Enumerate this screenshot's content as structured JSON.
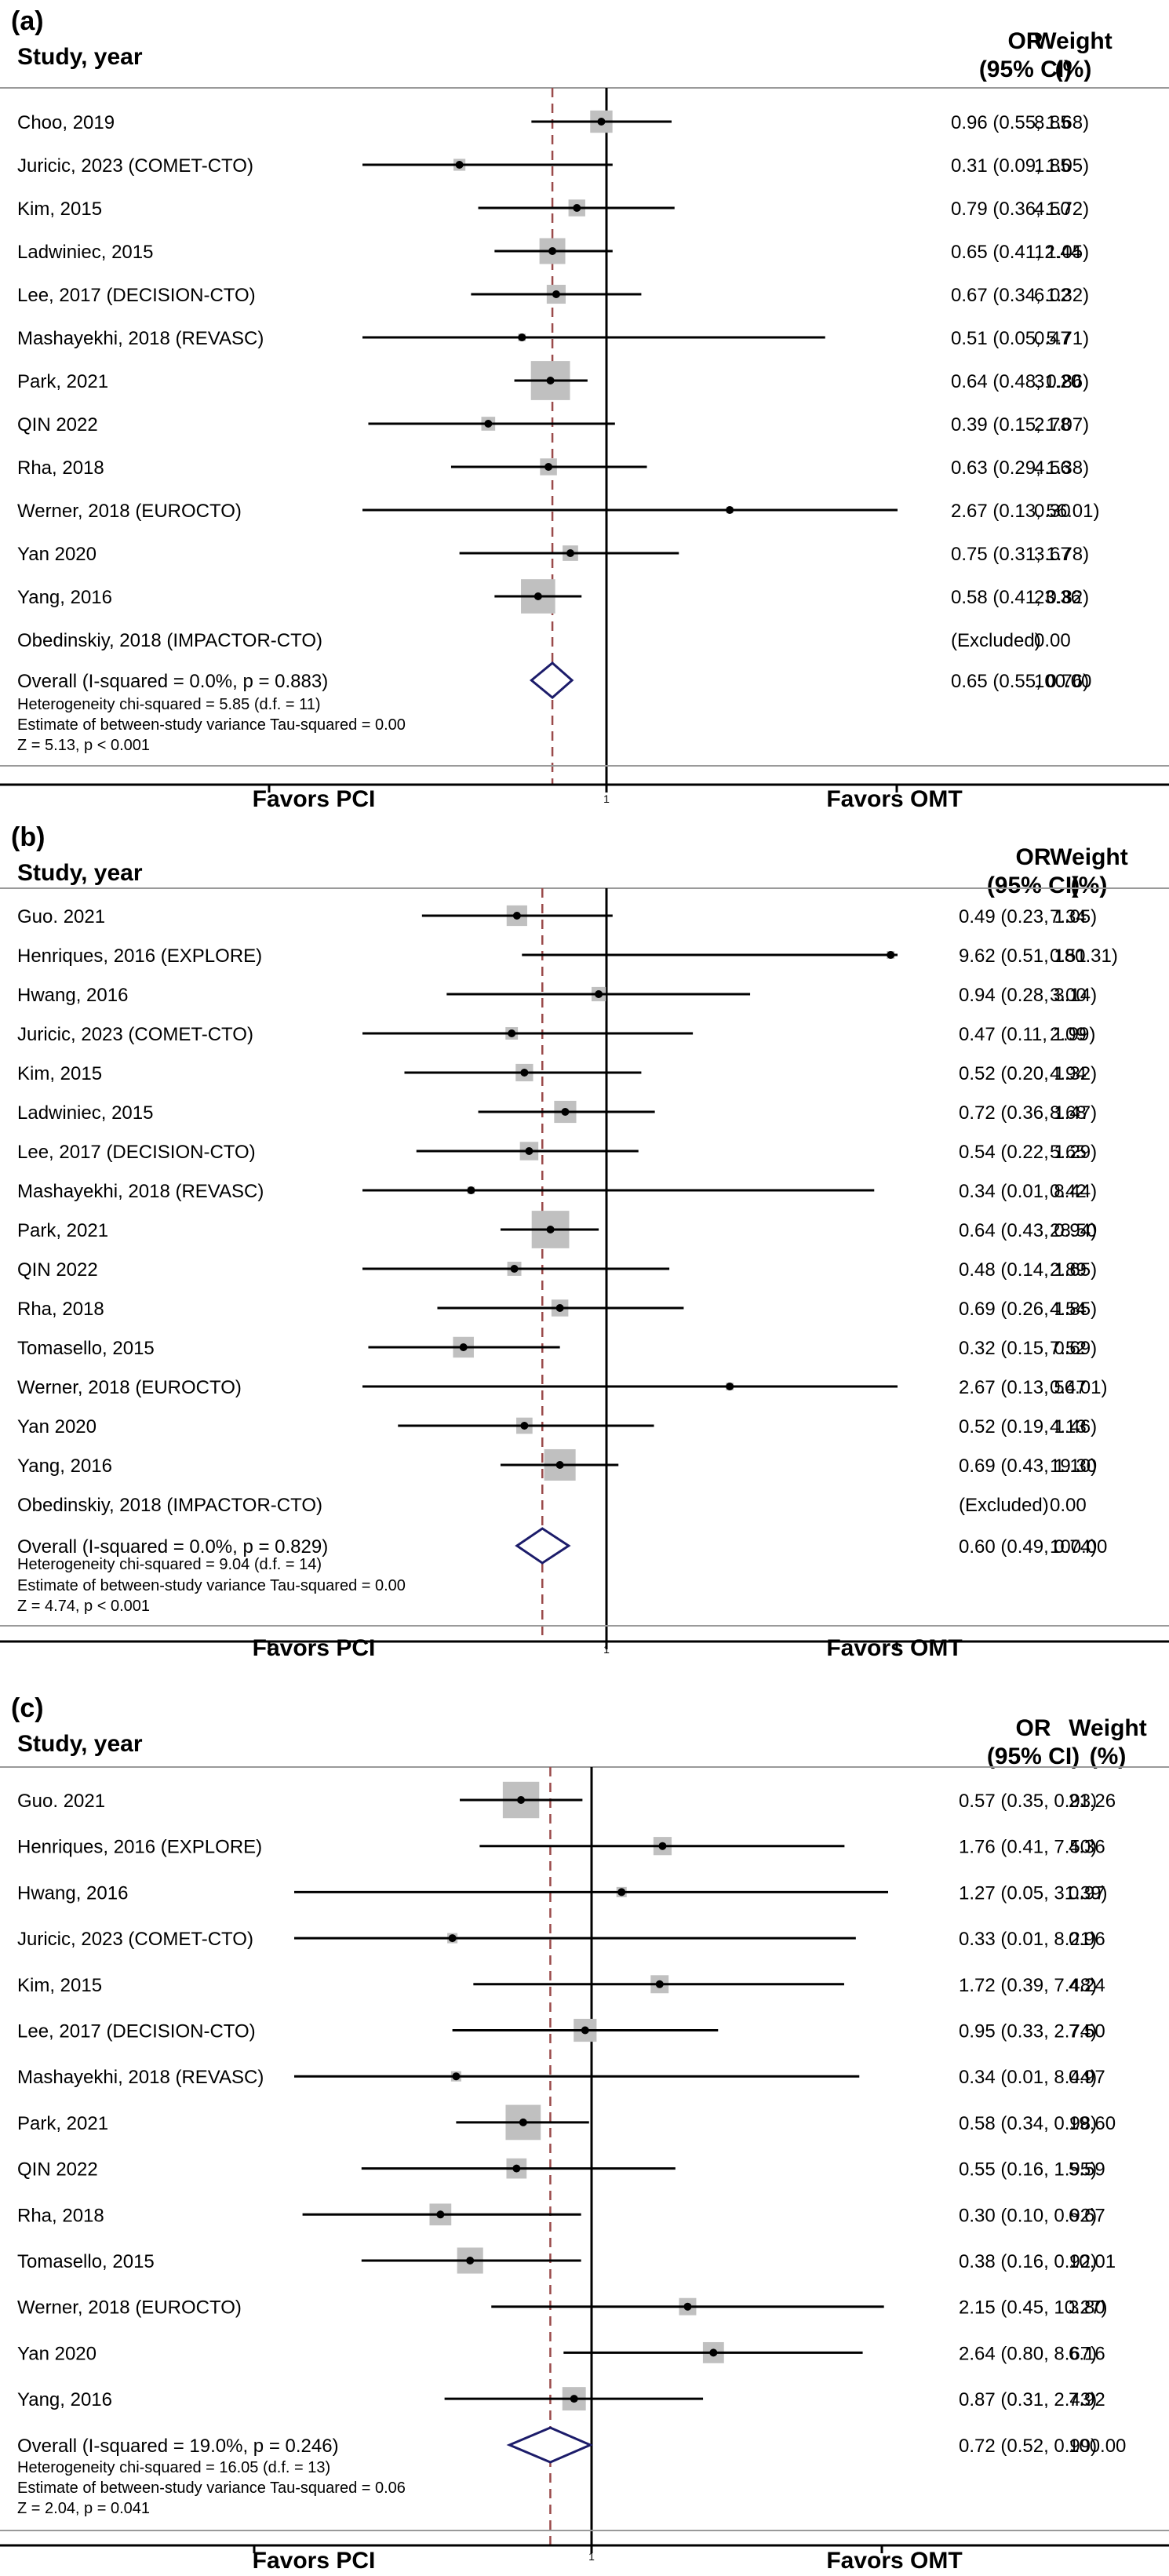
{
  "chart_data": [
    {
      "type": "forest",
      "panel_label": "(a)",
      "header": {
        "study": "Study, year",
        "or_line1": "OR",
        "or_line2": "(95% CI)",
        "weight_line1": "Weight",
        "weight_line2": "(%)"
      },
      "xaxis": {
        "tick_label": "1",
        "left_label": "Favors PCI",
        "right_label": "Favors OMT"
      },
      "studies": [
        {
          "name": "Choo, 2019",
          "or": 0.96,
          "lo": 0.55,
          "hi": 1.68,
          "text": "0.96 (0.55, 1.68)",
          "weight": "8.85",
          "w": 8.85
        },
        {
          "name": "Juricic, 2023 (COMET-CTO)",
          "or": 0.31,
          "lo": 0.09,
          "hi": 1.05,
          "text": "0.31 (0.09, 1.05)",
          "weight": "1.85",
          "w": 1.85
        },
        {
          "name": "Kim, 2015",
          "or": 0.79,
          "lo": 0.36,
          "hi": 1.72,
          "text": "0.79 (0.36, 1.72)",
          "weight": "4.50",
          "w": 4.5
        },
        {
          "name": "Ladwiniec, 2015",
          "or": 0.65,
          "lo": 0.41,
          "hi": 1.05,
          "text": "0.65 (0.41, 1.05)",
          "weight": "12.44",
          "w": 12.44
        },
        {
          "name": "Lee, 2017 (DECISION-CTO)",
          "or": 0.67,
          "lo": 0.34,
          "hi": 1.32,
          "text": "0.67 (0.34, 1.32)",
          "weight": "6.02",
          "w": 6.02
        },
        {
          "name": "Mashayekhi, 2018 (REVASC)",
          "or": 0.51,
          "lo": 0.05,
          "hi": 5.71,
          "text": "0.51 (0.05, 5.71)",
          "weight": "0.47",
          "w": 0.47
        },
        {
          "name": "Park, 2021",
          "or": 0.64,
          "lo": 0.48,
          "hi": 0.86,
          "text": "0.64 (0.48, 0.86)",
          "weight": "31.20",
          "w": 31.2
        },
        {
          "name": "QIN 2022",
          "or": 0.39,
          "lo": 0.15,
          "hi": 1.07,
          "text": "0.39 (0.15, 1.07)",
          "weight": "2.78",
          "w": 2.78
        },
        {
          "name": "Rha, 2018",
          "or": 0.63,
          "lo": 0.29,
          "hi": 1.38,
          "text": "0.63 (0.29, 1.38)",
          "weight": "4.56",
          "w": 4.56
        },
        {
          "name": "Werner, 2018 (EUROCTO)",
          "or": 2.67,
          "lo": 0.13,
          "hi": 56.01,
          "text": "2.67 (0.13, 56.01)",
          "weight": "0.30",
          "w": 0.3
        },
        {
          "name": "Yan 2020",
          "or": 0.75,
          "lo": 0.31,
          "hi": 1.78,
          "text": "0.75 (0.31, 1.78)",
          "weight": "3.67",
          "w": 3.67
        },
        {
          "name": "Yang, 2016",
          "or": 0.58,
          "lo": 0.41,
          "hi": 0.82,
          "text": "0.58 (0.41, 0.82)",
          "weight": "23.36",
          "w": 23.36
        },
        {
          "name": "Obedinskiy, 2018 (IMPACTOR-CTO)",
          "or": null,
          "lo": null,
          "hi": null,
          "text": "(Excluded)",
          "weight": "0.00",
          "w": 0
        }
      ],
      "overall": {
        "label": "Overall  (I-squared = 0.0%, p = 0.883)",
        "or": 0.65,
        "lo": 0.55,
        "hi": 0.76,
        "text": "0.65 (0.55, 0.76)",
        "weight": "100.00"
      },
      "notes": [
        "Heterogeneity chi-squared = 5.85 (d.f. = 11)",
        "Estimate of between-study variance Tau-squared = 0.00",
        "Z = 5.13, p < 0.001"
      ]
    },
    {
      "type": "forest",
      "panel_label": "(b)",
      "header": {
        "study": "Study, year",
        "or_line1": "OR",
        "or_line2": "(95% CI)",
        "weight_line1": "Weight",
        "weight_line2": "(%)"
      },
      "xaxis": {
        "tick_label": "1",
        "left_label": "Favors PCI",
        "right_label": "Favors OMT"
      },
      "studies": [
        {
          "name": "Guo. 2021",
          "or": 0.49,
          "lo": 0.23,
          "hi": 1.05,
          "text": "0.49 (0.23, 1.05)",
          "weight": "7.34",
          "w": 7.34
        },
        {
          "name": "Henriques, 2016 (EXPLORE)",
          "or": 9.62,
          "lo": 0.51,
          "hi": 180.31,
          "text": "9.62 (0.51, 180.31)",
          "weight": "0.51",
          "w": 0.51
        },
        {
          "name": "Hwang, 2016",
          "or": 0.94,
          "lo": 0.28,
          "hi": 3.14,
          "text": "0.94 (0.28, 3.14)",
          "weight": "3.00",
          "w": 3.0
        },
        {
          "name": "Juricic, 2023 (COMET-CTO)",
          "or": 0.47,
          "lo": 0.11,
          "hi": 1.99,
          "text": "0.47 (0.11, 1.99)",
          "weight": "2.09",
          "w": 2.09
        },
        {
          "name": "Kim, 2015",
          "or": 0.52,
          "lo": 0.2,
          "hi": 1.32,
          "text": "0.52 (0.20, 1.32)",
          "weight": "4.94",
          "w": 4.94
        },
        {
          "name": "Ladwiniec, 2015",
          "or": 0.72,
          "lo": 0.36,
          "hi": 1.47,
          "text": "0.72 (0.36, 1.47)",
          "weight": "8.68",
          "w": 8.68
        },
        {
          "name": "Lee, 2017 (DECISION-CTO)",
          "or": 0.54,
          "lo": 0.22,
          "hi": 1.29,
          "text": "0.54 (0.22, 1.29)",
          "weight": "5.65",
          "w": 5.65
        },
        {
          "name": "Mashayekhi, 2018 (REVASC)",
          "or": 0.34,
          "lo": 0.01,
          "hi": 8.44,
          "text": "0.34 (0.01, 8.44)",
          "weight": "0.42",
          "w": 0.42
        },
        {
          "name": "Park, 2021",
          "or": 0.64,
          "lo": 0.43,
          "hi": 0.94,
          "text": "0.64 (0.43, 0.94)",
          "weight": "28.50",
          "w": 28.5
        },
        {
          "name": "QIN 2022",
          "or": 0.48,
          "lo": 0.14,
          "hi": 1.65,
          "text": "0.48 (0.14, 1.65)",
          "weight": "2.89",
          "w": 2.89
        },
        {
          "name": "Rha, 2018",
          "or": 0.69,
          "lo": 0.26,
          "hi": 1.85,
          "text": "0.69 (0.26, 1.85)",
          "weight": "4.54",
          "w": 4.54
        },
        {
          "name": "Tomasello, 2015",
          "or": 0.32,
          "lo": 0.15,
          "hi": 0.69,
          "text": "0.32 (0.15, 0.69)",
          "weight": "7.52",
          "w": 7.52
        },
        {
          "name": "Werner, 2018 (EUROCTO)",
          "or": 2.67,
          "lo": 0.13,
          "hi": 56.01,
          "text": "2.67 (0.13, 56.01)",
          "weight": "0.47",
          "w": 0.47
        },
        {
          "name": "Yan 2020",
          "or": 0.52,
          "lo": 0.19,
          "hi": 1.46,
          "text": "0.52 (0.19, 1.46)",
          "weight": "4.13",
          "w": 4.13
        },
        {
          "name": "Yang, 2016",
          "or": 0.69,
          "lo": 0.43,
          "hi": 1.1,
          "text": "0.69 (0.43, 1.10)",
          "weight": "19.30",
          "w": 19.3
        },
        {
          "name": "Obedinskiy, 2018 (IMPACTOR-CTO)",
          "or": null,
          "lo": null,
          "hi": null,
          "text": "(Excluded)",
          "weight": "0.00",
          "w": 0
        }
      ],
      "overall": {
        "label": "Overall  (I-squared = 0.0%, p = 0.829)",
        "or": 0.6,
        "lo": 0.49,
        "hi": 0.74,
        "text": "0.60 (0.49, 0.74)",
        "weight": "100.00"
      },
      "notes": [
        "Heterogeneity chi-squared = 9.04 (d.f. = 14)",
        "Estimate of between-study variance Tau-squared = 0.00",
        "Z = 4.74, p < 0.001"
      ]
    },
    {
      "type": "forest",
      "panel_label": "(c)",
      "header": {
        "study": "Study, year",
        "or_line1": "OR",
        "or_line2": "(95% CI)",
        "weight_line1": "Weight",
        "weight_line2": "(%)"
      },
      "xaxis": {
        "tick_label": "1",
        "left_label": "Favors PCI",
        "right_label": "Favors OMT"
      },
      "studies": [
        {
          "name": "Guo. 2021",
          "or": 0.57,
          "lo": 0.35,
          "hi": 0.93,
          "text": "0.57 (0.35, 0.93)",
          "weight": "21.26",
          "w": 21.26
        },
        {
          "name": "Henriques, 2016 (EXPLORE)",
          "or": 1.76,
          "lo": 0.41,
          "hi": 7.5,
          "text": "1.76 (0.41, 7.50)",
          "weight": "4.36",
          "w": 4.36
        },
        {
          "name": "Hwang, 2016",
          "or": 1.27,
          "lo": 0.05,
          "hi": 31.39,
          "text": "1.27 (0.05, 31.39)",
          "weight": "0.97",
          "w": 0.97
        },
        {
          "name": "Juricic, 2023 (COMET-CTO)",
          "or": 0.33,
          "lo": 0.01,
          "hi": 8.21,
          "text": "0.33 (0.01, 8.21)",
          "weight": "0.96",
          "w": 0.96
        },
        {
          "name": "Kim, 2015",
          "or": 1.72,
          "lo": 0.39,
          "hi": 7.48,
          "text": "1.72 (0.39, 7.48)",
          "weight": "4.24",
          "w": 4.24
        },
        {
          "name": "Lee, 2017 (DECISION-CTO)",
          "or": 0.95,
          "lo": 0.33,
          "hi": 2.74,
          "text": "0.95 (0.33, 2.74)",
          "weight": "7.50",
          "w": 7.5
        },
        {
          "name": "Mashayekhi, 2018 (REVASC)",
          "or": 0.34,
          "lo": 0.01,
          "hi": 8.44,
          "text": "0.34 (0.01, 8.44)",
          "weight": "0.97",
          "w": 0.97
        },
        {
          "name": "Park, 2021",
          "or": 0.58,
          "lo": 0.34,
          "hi": 0.98,
          "text": "0.58 (0.34, 0.98)",
          "weight": "19.60",
          "w": 19.6
        },
        {
          "name": "QIN 2022",
          "or": 0.55,
          "lo": 0.16,
          "hi": 1.95,
          "text": "0.55 (0.16, 1.95)",
          "weight": "5.59",
          "w": 5.59
        },
        {
          "name": "Rha, 2018",
          "or": 0.3,
          "lo": 0.1,
          "hi": 0.92,
          "text": "0.30 (0.10, 0.92)",
          "weight": "6.67",
          "w": 6.67
        },
        {
          "name": "Tomasello, 2015",
          "or": 0.38,
          "lo": 0.16,
          "hi": 0.92,
          "text": "0.38 (0.16, 0.92)",
          "weight": "10.01",
          "w": 10.01
        },
        {
          "name": "Werner, 2018 (EUROCTO)",
          "or": 2.15,
          "lo": 0.45,
          "hi": 10.27,
          "text": "2.15 (0.45, 10.27)",
          "weight": "3.80",
          "w": 3.8
        },
        {
          "name": "Yan 2020",
          "or": 2.64,
          "lo": 0.8,
          "hi": 8.67,
          "text": "2.64 (0.80, 8.67)",
          "weight": "6.16",
          "w": 6.16
        },
        {
          "name": "Yang, 2016",
          "or": 0.87,
          "lo": 0.31,
          "hi": 2.43,
          "text": "0.87 (0.31, 2.43)",
          "weight": "7.92",
          "w": 7.92
        }
      ],
      "overall": {
        "label": "Overall  (I-squared = 19.0%, p = 0.246)",
        "or": 0.72,
        "lo": 0.52,
        "hi": 0.99,
        "text": "0.72 (0.52, 0.99)",
        "weight": "100.00"
      },
      "notes": [
        "Heterogeneity chi-squared = 16.05 (d.f. = 13)",
        "Estimate of between-study variance Tau-squared = 0.06",
        "Z = 2.04, p = 0.041"
      ]
    }
  ],
  "colors": {
    "marker_box": "#c0c0c0",
    "ci_line": "#000000",
    "null_line": "#000000",
    "overall_line": "#9a4a4a",
    "diamond": "#1c1c6a",
    "rule": "#9a9a9a"
  }
}
